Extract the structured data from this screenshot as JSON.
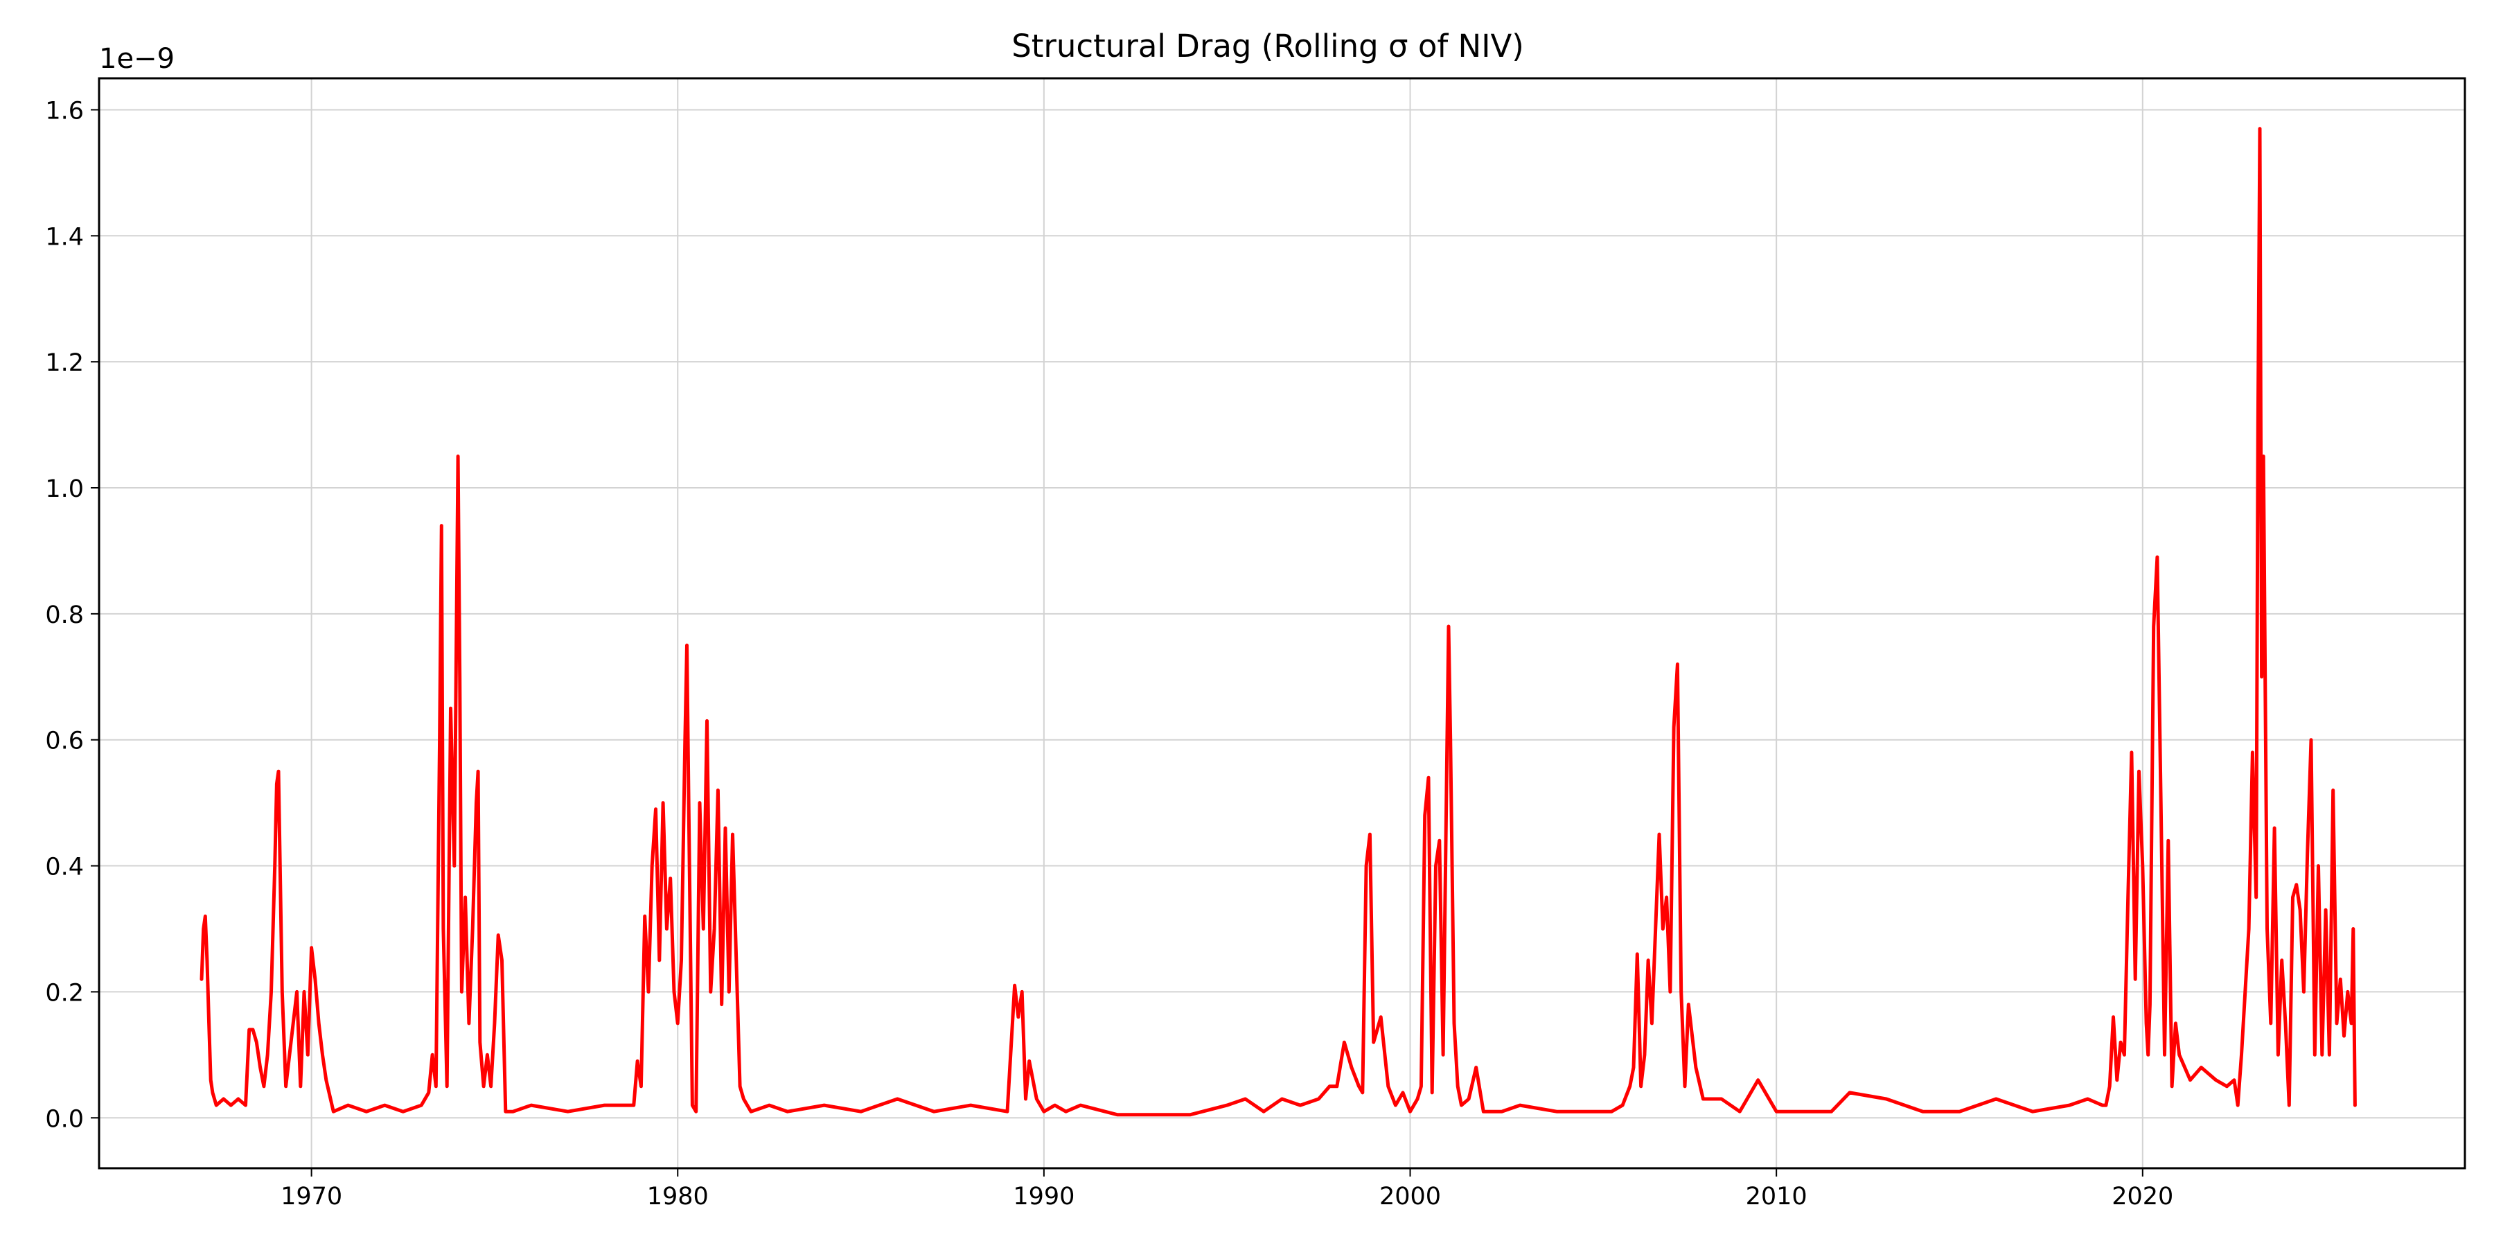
{
  "chart_data": {
    "type": "line",
    "title": "Structural Drag (Rolling σ of NIV)",
    "xlabel": "",
    "ylabel": "",
    "y_offset_label": "1e−9",
    "y_scale_factor": 1e-09,
    "xlim": [
      1964.2,
      2028.8
    ],
    "ylim": [
      -0.08,
      1.65
    ],
    "x_ticks": [
      1970,
      1980,
      1990,
      2000,
      2010,
      2020
    ],
    "x_tick_labels": [
      "1970",
      "1980",
      "1990",
      "2000",
      "2010",
      "2020"
    ],
    "y_ticks": [
      0.0,
      0.2,
      0.4,
      0.6,
      0.8,
      1.0,
      1.2,
      1.4,
      1.6
    ],
    "y_tick_labels": [
      "0.0",
      "0.2",
      "0.4",
      "0.6",
      "0.8",
      "1.0",
      "1.2",
      "1.4",
      "1.6"
    ],
    "grid": true,
    "line_color": "#ff0000",
    "series": [
      {
        "x": [
          1967.0,
          1967.05,
          1967.1,
          1967.15,
          1967.2,
          1967.25,
          1967.3,
          1967.4,
          1967.6,
          1967.8,
          1968.0,
          1968.2,
          1968.3,
          1968.4,
          1968.5,
          1968.6,
          1968.7,
          1968.8,
          1968.9,
          1969.0,
          1969.05,
          1969.1,
          1969.2,
          1969.3,
          1969.4,
          1969.5,
          1969.6,
          1969.7,
          1969.8,
          1969.9,
          1970.0,
          1970.1,
          1970.2,
          1970.3,
          1970.4,
          1970.6,
          1971.0,
          1971.5,
          1972.0,
          1972.5,
          1973.0,
          1973.2,
          1973.3,
          1973.4,
          1973.5,
          1973.55,
          1973.6,
          1973.7,
          1973.8,
          1973.9,
          1974.0,
          1974.05,
          1974.1,
          1974.2,
          1974.3,
          1974.4,
          1974.5,
          1974.55,
          1974.6,
          1974.7,
          1974.8,
          1974.9,
          1975.0,
          1975.1,
          1975.2,
          1975.3,
          1975.5,
          1976.0,
          1977.0,
          1978.0,
          1978.8,
          1978.9,
          1979.0,
          1979.1,
          1979.2,
          1979.3,
          1979.4,
          1979.5,
          1979.6,
          1979.7,
          1979.8,
          1979.9,
          1980.0,
          1980.1,
          1980.2,
          1980.25,
          1980.3,
          1980.4,
          1980.5,
          1980.6,
          1980.7,
          1980.8,
          1980.9,
          1981.0,
          1981.1,
          1981.2,
          1981.3,
          1981.4,
          1981.5,
          1981.6,
          1981.7,
          1981.8,
          1981.9,
          1982.0,
          1982.5,
          1983.0,
          1984.0,
          1985.0,
          1986.0,
          1986.5,
          1987.0,
          1988.0,
          1989.0,
          1989.2,
          1989.3,
          1989.4,
          1989.5,
          1989.6,
          1989.7,
          1989.8,
          1990.0,
          1990.3,
          1990.6,
          1991.0,
          1992.0,
          1993.0,
          1994.0,
          1995.0,
          1995.5,
          1996.0,
          1996.5,
          1997.0,
          1997.5,
          1997.8,
          1998.0,
          1998.2,
          1998.4,
          1998.6,
          1998.7,
          1998.8,
          1998.9,
          1999.0,
          1999.2,
          1999.4,
          1999.6,
          1999.8,
          2000.0,
          2000.2,
          2000.3,
          2000.4,
          2000.5,
          2000.6,
          2000.7,
          2000.8,
          2000.9,
          2001.0,
          2001.05,
          2001.1,
          2001.2,
          2001.3,
          2001.4,
          2001.6,
          2001.8,
          2002.0,
          2002.5,
          2003.0,
          2004.0,
          2005.0,
          2005.5,
          2005.8,
          2006.0,
          2006.1,
          2006.2,
          2006.3,
          2006.4,
          2006.5,
          2006.6,
          2006.7,
          2006.8,
          2006.9,
          2007.0,
          2007.1,
          2007.2,
          2007.3,
          2007.4,
          2007.5,
          2007.6,
          2007.8,
          2008.0,
          2008.5,
          2009.0,
          2009.5,
          2010.0,
          2011.0,
          2011.5,
          2012.0,
          2013.0,
          2014.0,
          2015.0,
          2016.0,
          2017.0,
          2018.0,
          2018.5,
          2018.9,
          2019.0,
          2019.1,
          2019.2,
          2019.3,
          2019.4,
          2019.5,
          2019.6,
          2019.7,
          2019.8,
          2019.9,
          2020.0,
          2020.1,
          2020.15,
          2020.2,
          2020.3,
          2020.4,
          2020.5,
          2020.6,
          2020.7,
          2020.8,
          2020.9,
          2021.0,
          2021.3,
          2021.6,
          2022.0,
          2022.3,
          2022.5,
          2022.6,
          2022.7,
          2022.8,
          2022.9,
          2023.0,
          2023.1,
          2023.15,
          2023.2,
          2023.25,
          2023.3,
          2023.4,
          2023.5,
          2023.6,
          2023.7,
          2023.8,
          2023.9,
          2024.0,
          2024.1,
          2024.2,
          2024.3,
          2024.4,
          2024.5,
          2024.6,
          2024.7,
          2024.8,
          2024.9,
          2025.0,
          2025.1,
          2025.2,
          2025.3,
          2025.4,
          2025.5,
          2025.6,
          2025.7,
          2025.75,
          2025.8
        ],
        "y": [
          0.22,
          0.3,
          0.32,
          0.25,
          0.15,
          0.06,
          0.04,
          0.02,
          0.03,
          0.02,
          0.03,
          0.02,
          0.14,
          0.14,
          0.12,
          0.08,
          0.05,
          0.1,
          0.2,
          0.4,
          0.53,
          0.55,
          0.2,
          0.05,
          0.1,
          0.15,
          0.2,
          0.05,
          0.2,
          0.1,
          0.27,
          0.22,
          0.15,
          0.1,
          0.06,
          0.01,
          0.02,
          0.01,
          0.02,
          0.01,
          0.02,
          0.04,
          0.1,
          0.05,
          0.6,
          0.94,
          0.3,
          0.05,
          0.65,
          0.4,
          1.05,
          0.7,
          0.2,
          0.35,
          0.15,
          0.3,
          0.5,
          0.55,
          0.12,
          0.05,
          0.1,
          0.05,
          0.15,
          0.29,
          0.25,
          0.01,
          0.01,
          0.02,
          0.01,
          0.02,
          0.02,
          0.09,
          0.05,
          0.32,
          0.2,
          0.4,
          0.49,
          0.25,
          0.5,
          0.3,
          0.38,
          0.2,
          0.15,
          0.25,
          0.6,
          0.75,
          0.5,
          0.02,
          0.01,
          0.5,
          0.3,
          0.63,
          0.2,
          0.3,
          0.52,
          0.18,
          0.46,
          0.2,
          0.45,
          0.25,
          0.05,
          0.03,
          0.02,
          0.01,
          0.02,
          0.01,
          0.02,
          0.01,
          0.03,
          0.02,
          0.01,
          0.02,
          0.01,
          0.21,
          0.16,
          0.2,
          0.03,
          0.09,
          0.06,
          0.03,
          0.01,
          0.02,
          0.01,
          0.02,
          0.005,
          0.005,
          0.005,
          0.02,
          0.03,
          0.01,
          0.03,
          0.02,
          0.03,
          0.05,
          0.05,
          0.12,
          0.08,
          0.05,
          0.04,
          0.4,
          0.45,
          0.12,
          0.16,
          0.05,
          0.02,
          0.04,
          0.01,
          0.03,
          0.05,
          0.48,
          0.54,
          0.04,
          0.4,
          0.44,
          0.1,
          0.56,
          0.78,
          0.6,
          0.15,
          0.05,
          0.02,
          0.03,
          0.08,
          0.01,
          0.01,
          0.02,
          0.01,
          0.01,
          0.01,
          0.02,
          0.05,
          0.08,
          0.26,
          0.05,
          0.1,
          0.25,
          0.15,
          0.3,
          0.45,
          0.3,
          0.35,
          0.2,
          0.62,
          0.72,
          0.2,
          0.05,
          0.18,
          0.08,
          0.03,
          0.03,
          0.01,
          0.06,
          0.01,
          0.01,
          0.01,
          0.04,
          0.03,
          0.01,
          0.01,
          0.03,
          0.01,
          0.02,
          0.03,
          0.02,
          0.02,
          0.05,
          0.16,
          0.06,
          0.12,
          0.1,
          0.35,
          0.58,
          0.22,
          0.55,
          0.4,
          0.15,
          0.1,
          0.18,
          0.78,
          0.89,
          0.5,
          0.1,
          0.44,
          0.05,
          0.15,
          0.1,
          0.06,
          0.08,
          0.06,
          0.05,
          0.06,
          0.02,
          0.1,
          0.2,
          0.3,
          0.58,
          0.35,
          1.1,
          1.57,
          0.7,
          1.05,
          0.3,
          0.15,
          0.46,
          0.1,
          0.25,
          0.15,
          0.02,
          0.35,
          0.37,
          0.33,
          0.2,
          0.42,
          0.6,
          0.1,
          0.4,
          0.1,
          0.33,
          0.1,
          0.52,
          0.15,
          0.22,
          0.13,
          0.2,
          0.15,
          0.3,
          0.02
        ]
      }
    ]
  }
}
